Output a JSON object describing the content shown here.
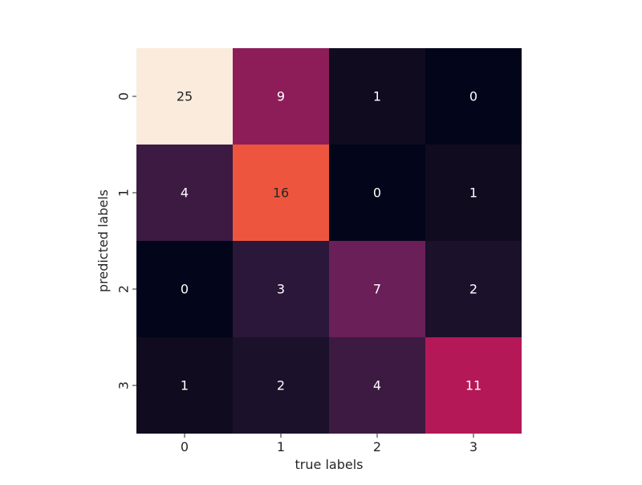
{
  "chart_data": {
    "type": "heatmap",
    "title": "",
    "xlabel": "true labels",
    "ylabel": "predicted labels",
    "x_categories": [
      "0",
      "1",
      "2",
      "3"
    ],
    "y_categories": [
      "0",
      "1",
      "2",
      "3"
    ],
    "matrix": [
      [
        25,
        9,
        1,
        0
      ],
      [
        4,
        16,
        0,
        1
      ],
      [
        0,
        3,
        7,
        2
      ],
      [
        1,
        2,
        4,
        11
      ]
    ],
    "value_range": [
      0,
      25
    ],
    "colormap": "rocket",
    "colorbar": false,
    "grid": false,
    "annotated": true
  }
}
